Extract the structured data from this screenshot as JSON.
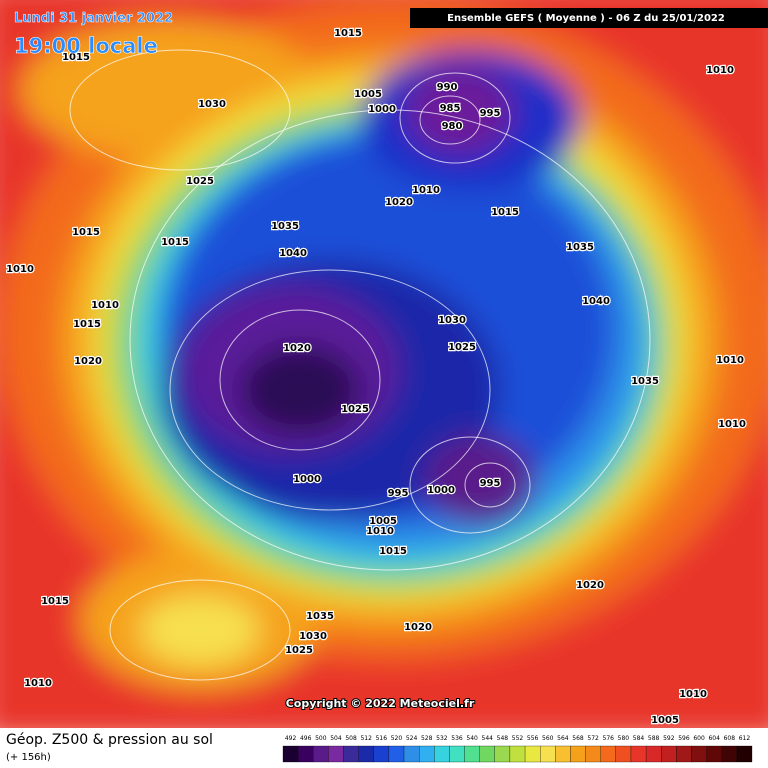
{
  "header": {
    "date": "Lundi 31 janvier 2022",
    "time": "19:00 locale",
    "run": "Ensemble GEFS  ( Moyenne )  -  06 Z du 25/01/2022"
  },
  "map": {
    "isobar_labels": [
      1015,
      1015,
      1030,
      1005,
      990,
      985,
      995,
      1000,
      980,
      1010,
      1025,
      1010,
      1020,
      1015,
      1035,
      1015,
      1015,
      1040,
      1035,
      1010,
      1040,
      1010,
      1015,
      1030,
      1025,
      1020,
      1020,
      1010,
      1035,
      1025,
      1010,
      1000,
      995,
      1000,
      995,
      1005,
      1010,
      1015,
      1020,
      1015,
      1035,
      1020,
      1030,
      1025,
      1010,
      1010,
      1005
    ],
    "copyright": "Copyright © 2022 Meteociel.fr"
  },
  "footer": {
    "title": "Géop. Z500 & pression au sol",
    "subtitle": "(+ 156h)",
    "scale": [
      492,
      496,
      500,
      504,
      508,
      512,
      516,
      520,
      524,
      528,
      532,
      536,
      540,
      544,
      548,
      552,
      556,
      560,
      564,
      568,
      572,
      576,
      580,
      584,
      588,
      592,
      596,
      600,
      604,
      608,
      612
    ]
  }
}
